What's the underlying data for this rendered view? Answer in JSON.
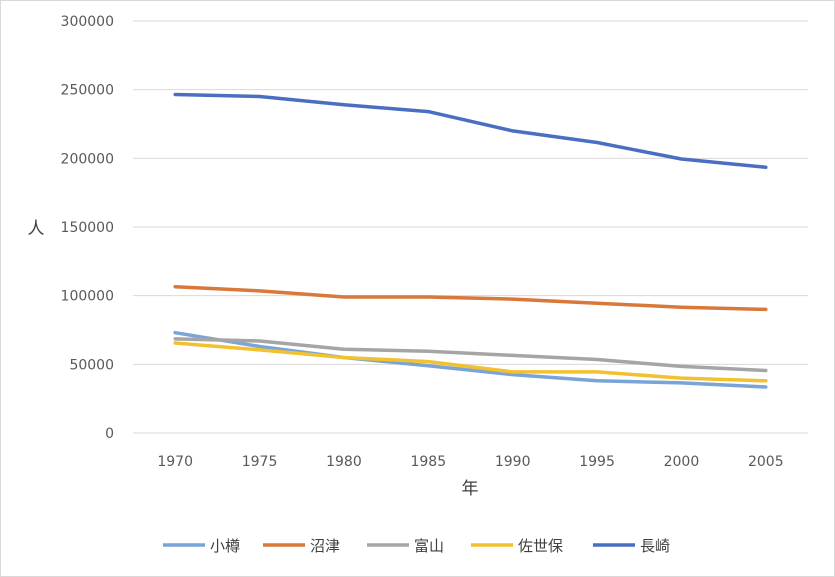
{
  "chart_data": {
    "type": "line",
    "title": "",
    "xlabel": "年",
    "ylabel": "人",
    "x": [
      "1970",
      "1975",
      "1980",
      "1985",
      "1990",
      "1995",
      "2000",
      "2005"
    ],
    "ylim": [
      0,
      300000
    ],
    "yticks": [
      "0",
      "50000",
      "100000",
      "150000",
      "200000",
      "250000",
      "300000"
    ],
    "grid": true,
    "legend_position": "bottom",
    "series": [
      {
        "name": "小樽",
        "color": "#7aa3d8",
        "values": [
          73000,
          63000,
          55000,
          49000,
          42500,
          38000,
          36500,
          33500
        ]
      },
      {
        "name": "沼津",
        "color": "#d8783a",
        "values": [
          106500,
          103500,
          99000,
          99000,
          97500,
          94500,
          91500,
          90000
        ]
      },
      {
        "name": "富山",
        "color": "#a5a5a5",
        "values": [
          68500,
          67000,
          61000,
          59500,
          56500,
          53500,
          48500,
          45500
        ]
      },
      {
        "name": "佐世保",
        "color": "#f2c12e",
        "values": [
          65500,
          60500,
          55000,
          52000,
          44500,
          44500,
          40000,
          38000
        ]
      },
      {
        "name": "長崎",
        "color": "#4a6fc2",
        "values": [
          246500,
          245000,
          239000,
          234000,
          220000,
          211500,
          199500,
          193500
        ]
      }
    ]
  }
}
